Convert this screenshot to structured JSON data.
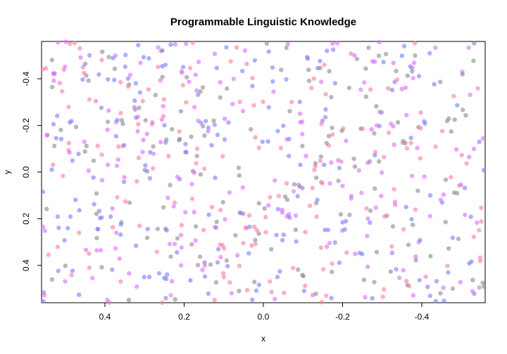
{
  "chart_data": {
    "type": "scatter",
    "title": "Programmable Linguistic Knowledge",
    "xlabel": "x",
    "ylabel": "y",
    "xlim": [
      0.56,
      -0.56
    ],
    "ylim": [
      -0.56,
      0.56
    ],
    "x_reversed": true,
    "y_reversed": true,
    "x_ticks": [
      0.4,
      0.2,
      0.0,
      -0.2,
      -0.4
    ],
    "x_tick_labels": [
      "0.4",
      "0.2",
      "0.0",
      "-0.2",
      "-0.4"
    ],
    "y_ticks": [
      -0.4,
      -0.2,
      0.0,
      0.2,
      0.4
    ],
    "y_tick_labels": [
      "-0.4",
      "-0.2",
      "0.0",
      "0.2",
      "0.4"
    ],
    "grid": false,
    "legend": "none",
    "series_colors": [
      "#7a7aff",
      "#ff7aa0",
      "#d86bff",
      "#888888"
    ],
    "point_count": 720,
    "seed": 91357,
    "x_range": [
      -0.56,
      0.56
    ],
    "y_range": [
      -0.56,
      0.56
    ]
  }
}
